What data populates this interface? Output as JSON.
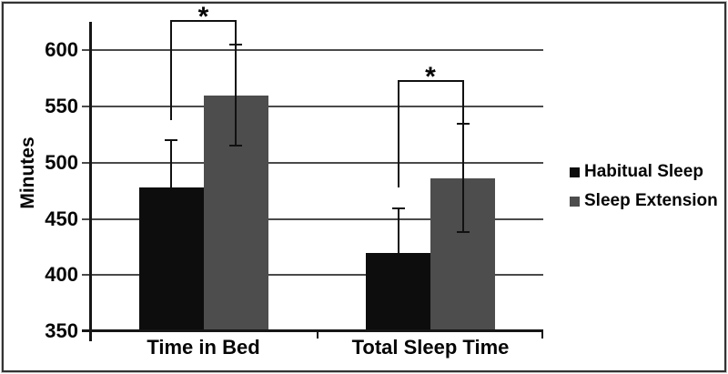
{
  "figure": {
    "background": "#ffffff",
    "frame_color": "#333333"
  },
  "chart_data": {
    "type": "bar",
    "title": "",
    "xlabel": "",
    "ylabel": "Minutes",
    "categories": [
      "Time in Bed",
      "Total Sleep Time"
    ],
    "series": [
      {
        "name": "Habitual Sleep",
        "color": "#0d0d0d",
        "values": [
          478,
          420
        ],
        "error_upper": [
          520,
          459
        ],
        "error_lower": [
          null,
          null
        ]
      },
      {
        "name": "Sleep Extension",
        "color": "#4d4d4d",
        "values": [
          560,
          486
        ],
        "error_upper": [
          605,
          535
        ],
        "error_lower": [
          515,
          438
        ]
      }
    ],
    "ylim": [
      350,
      625
    ],
    "yticks": [
      350,
      400,
      450,
      500,
      550,
      600
    ],
    "grid": "horizontal",
    "legend_position": "right",
    "significance_brackets": [
      {
        "category": "Time in Bed",
        "label": "*",
        "top": 626,
        "left_drop": 538,
        "right_drop": 605
      },
      {
        "category": "Total Sleep Time",
        "label": "*",
        "top": 573,
        "left_drop": 478,
        "right_drop": 535
      }
    ]
  }
}
